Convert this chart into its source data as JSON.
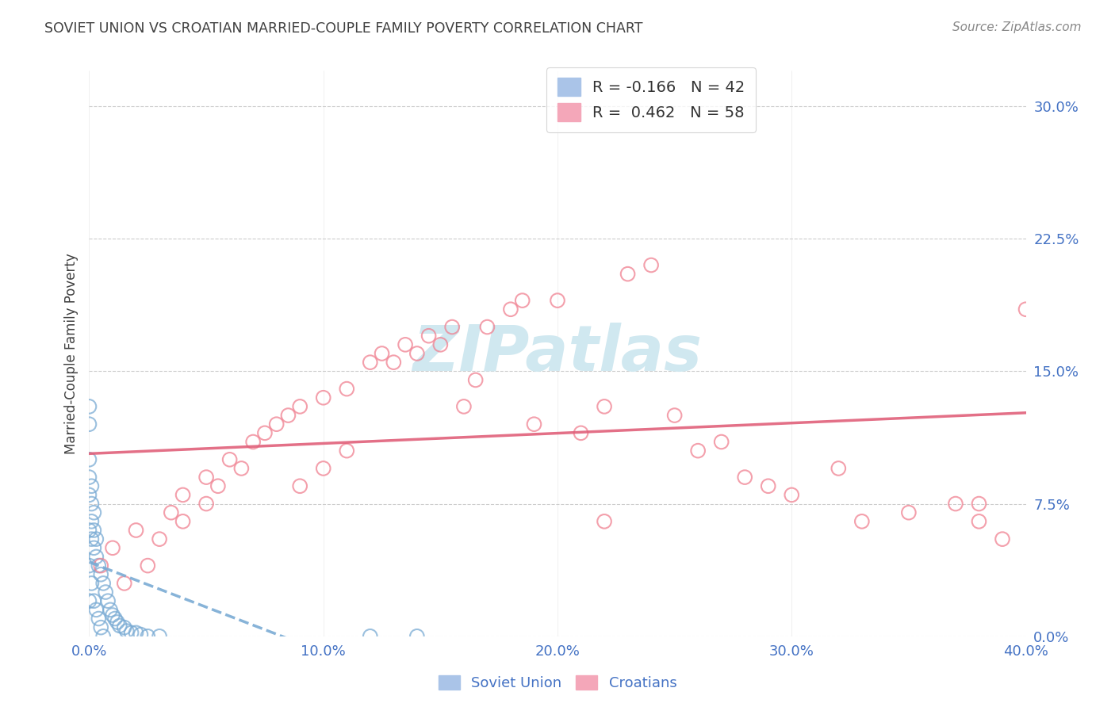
{
  "title": "SOVIET UNION VS CROATIAN MARRIED-COUPLE FAMILY POVERTY CORRELATION CHART",
  "source": "Source: ZipAtlas.com",
  "ylabel": "Married-Couple Family Poverty",
  "xlim": [
    0.0,
    0.4
  ],
  "ylim": [
    0.0,
    0.32
  ],
  "ytick_positions": [
    0.0,
    0.075,
    0.15,
    0.225,
    0.3
  ],
  "xtick_positions": [
    0.0,
    0.1,
    0.2,
    0.3,
    0.4
  ],
  "soviet_color": "#7aabd4",
  "croatian_color": "#f08090",
  "soviet_line_color": "#7aabd4",
  "croatian_line_color": "#e0607a",
  "watermark": "ZIPatlas",
  "watermark_color": "#d0e8f0",
  "bg_color": "#ffffff",
  "grid_color": "#cccccc",
  "soviet_r": -0.166,
  "soviet_n": 42,
  "croatian_r": 0.462,
  "croatian_n": 58,
  "soviet_x": [
    0.0,
    0.0,
    0.0,
    0.0,
    0.0,
    0.0,
    0.0,
    0.0,
    0.001,
    0.001,
    0.001,
    0.001,
    0.001,
    0.002,
    0.002,
    0.002,
    0.002,
    0.003,
    0.003,
    0.003,
    0.004,
    0.004,
    0.005,
    0.005,
    0.006,
    0.006,
    0.007,
    0.008,
    0.009,
    0.01,
    0.011,
    0.012,
    0.013,
    0.015,
    0.016,
    0.018,
    0.02,
    0.022,
    0.025,
    0.03,
    0.12,
    0.14
  ],
  "soviet_y": [
    0.13,
    0.12,
    0.1,
    0.09,
    0.08,
    0.06,
    0.04,
    0.02,
    0.085,
    0.075,
    0.065,
    0.055,
    0.03,
    0.07,
    0.06,
    0.05,
    0.02,
    0.055,
    0.045,
    0.015,
    0.04,
    0.01,
    0.035,
    0.005,
    0.03,
    0.0,
    0.025,
    0.02,
    0.015,
    0.012,
    0.01,
    0.008,
    0.006,
    0.005,
    0.003,
    0.002,
    0.002,
    0.001,
    0.0,
    0.0,
    0.0,
    0.0
  ],
  "croatian_x": [
    0.005,
    0.01,
    0.015,
    0.02,
    0.025,
    0.03,
    0.035,
    0.04,
    0.04,
    0.05,
    0.05,
    0.055,
    0.06,
    0.065,
    0.07,
    0.075,
    0.08,
    0.085,
    0.09,
    0.09,
    0.1,
    0.1,
    0.11,
    0.11,
    0.12,
    0.125,
    0.13,
    0.135,
    0.14,
    0.145,
    0.15,
    0.155,
    0.16,
    0.165,
    0.17,
    0.18,
    0.185,
    0.19,
    0.2,
    0.21,
    0.22,
    0.23,
    0.24,
    0.25,
    0.26,
    0.27,
    0.28,
    0.29,
    0.3,
    0.32,
    0.33,
    0.35,
    0.37,
    0.38,
    0.39,
    0.22,
    0.38,
    0.4
  ],
  "croatian_y": [
    0.04,
    0.05,
    0.03,
    0.06,
    0.04,
    0.055,
    0.07,
    0.065,
    0.08,
    0.075,
    0.09,
    0.085,
    0.1,
    0.095,
    0.11,
    0.115,
    0.12,
    0.125,
    0.13,
    0.085,
    0.135,
    0.095,
    0.14,
    0.105,
    0.155,
    0.16,
    0.155,
    0.165,
    0.16,
    0.17,
    0.165,
    0.175,
    0.13,
    0.145,
    0.175,
    0.185,
    0.19,
    0.12,
    0.19,
    0.115,
    0.13,
    0.205,
    0.21,
    0.125,
    0.105,
    0.11,
    0.09,
    0.085,
    0.08,
    0.095,
    0.065,
    0.07,
    0.075,
    0.065,
    0.055,
    0.065,
    0.075,
    0.185
  ],
  "legend_soviet_label": "R = -0.166   N = 42",
  "legend_croatian_label": "R =  0.462   N = 58",
  "legend_soviet_color": "#aac4e8",
  "legend_croatian_color": "#f4a7b9",
  "bottom_legend_soviet": "Soviet Union",
  "bottom_legend_croatian": "Croatians",
  "tick_label_color": "#4472c4",
  "title_color": "#404040",
  "source_color": "#888888",
  "ylabel_color": "#404040"
}
